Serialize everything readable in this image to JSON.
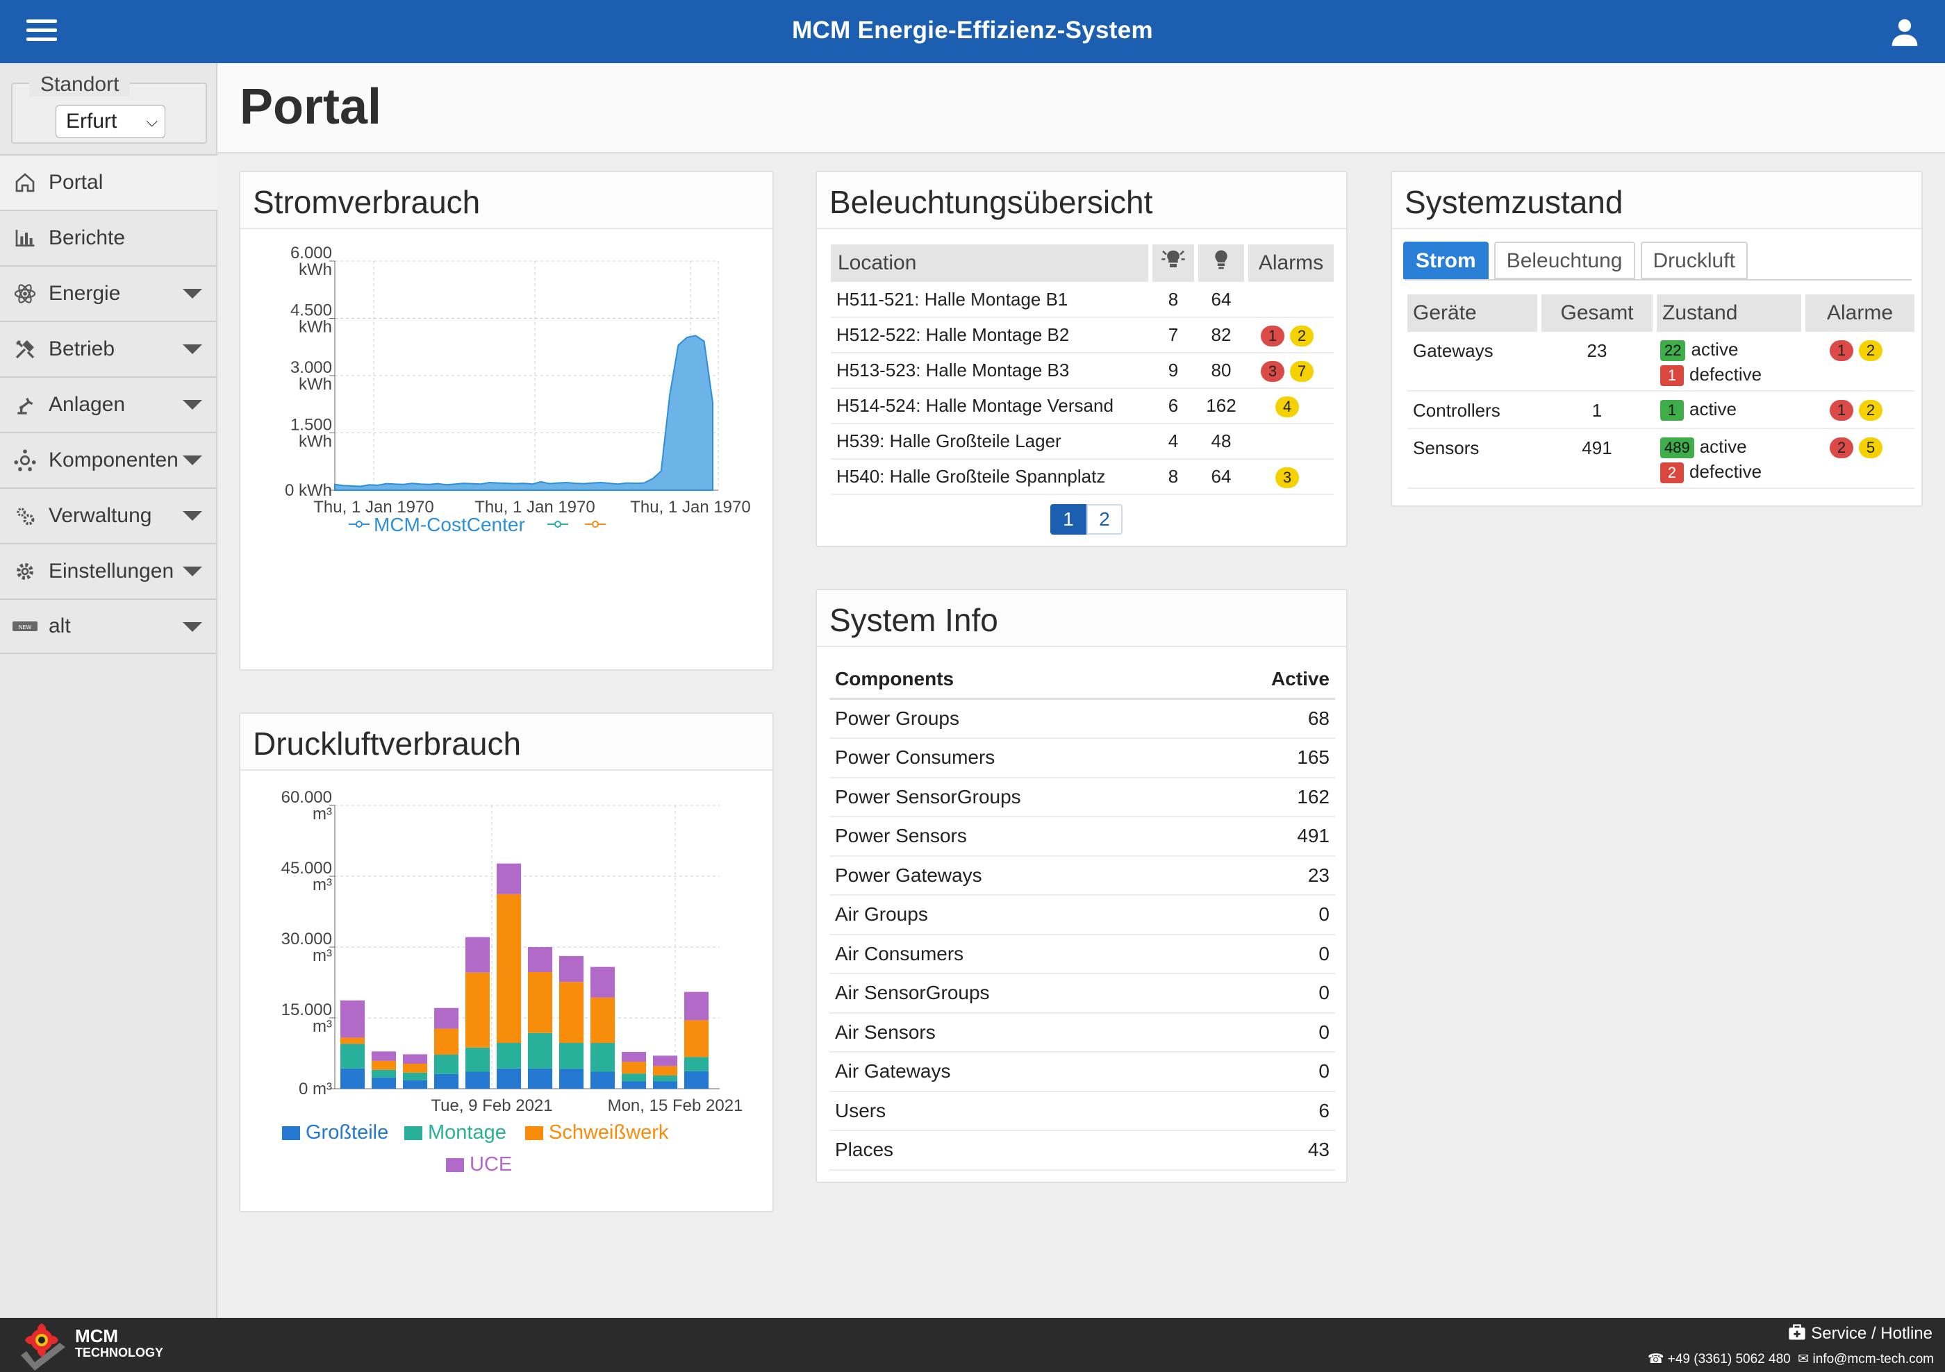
{
  "app": {
    "title": "MCM Energie-Effizienz-System"
  },
  "sidebar": {
    "standort_label": "Standort",
    "standort_value": "Erfurt",
    "items": [
      {
        "label": "Portal",
        "icon": "home-icon"
      },
      {
        "label": "Berichte",
        "icon": "bar-chart-icon"
      },
      {
        "label": "Energie",
        "icon": "atom-icon"
      },
      {
        "label": "Betrieb",
        "icon": "tools-icon"
      },
      {
        "label": "Anlagen",
        "icon": "robot-arm-icon"
      },
      {
        "label": "Komponenten",
        "icon": "components-icon"
      },
      {
        "label": "Verwaltung",
        "icon": "cogs-icon"
      },
      {
        "label": "Einstellungen",
        "icon": "gear-icon"
      },
      {
        "label": "alt",
        "icon": "new-badge-icon"
      }
    ]
  },
  "page": {
    "title": "Portal"
  },
  "strom": {
    "title": "Stromverbrauch",
    "chart_data": {
      "type": "area",
      "y_ticks": [
        "6.000 kWh",
        "4.500 kWh",
        "3.000 kWh",
        "1.500 kWh",
        "0 kWh"
      ],
      "x_ticks": [
        "Thu, 1 Jan 1970",
        "Thu, 1 Jan 1970",
        "Thu, 1 Jan 1970"
      ],
      "ylim": [
        0,
        6000
      ],
      "values": [
        150,
        120,
        110,
        100,
        140,
        130,
        170,
        160,
        150,
        180,
        160,
        150,
        170,
        140,
        160,
        180,
        170,
        160,
        200,
        190,
        180,
        170,
        180,
        160,
        220,
        170,
        190,
        200,
        180,
        170,
        190,
        200,
        180,
        160,
        190,
        180,
        190,
        300,
        500,
        2500,
        3800,
        4000,
        4050,
        3900,
        2300
      ],
      "legend": [
        "MCM-CostCenter",
        "",
        ""
      ],
      "colors": {
        "main": "#2d8fd9",
        "fill": "#6cb4e8",
        "teal": "#26b0a4",
        "orange": "#f58a1f"
      }
    }
  },
  "druck": {
    "title": "Druckluftverbrauch",
    "chart_data": {
      "type": "bar",
      "stacked": true,
      "y_ticks": [
        "60.000 m³",
        "45.000 m³",
        "30.000 m³",
        "15.000 m³",
        "0 m³"
      ],
      "x_ticks": [
        "Tue, 9 Feb 2021",
        "Mon, 15 Feb 2021"
      ],
      "ylim": [
        0,
        60000
      ],
      "series": [
        {
          "name": "Großteile",
          "color": "#2478d0",
          "values": [
            4300,
            2400,
            1800,
            3100,
            3600,
            4300,
            4300,
            4200,
            3600,
            1600,
            1600,
            3700
          ]
        },
        {
          "name": "Montage",
          "color": "#28b09a",
          "values": [
            5200,
            1600,
            1600,
            4100,
            5100,
            5400,
            7500,
            5500,
            6100,
            1600,
            1200,
            3000
          ]
        },
        {
          "name": "Schweißwerk",
          "color": "#f88d0c",
          "values": [
            1300,
            1900,
            1900,
            5500,
            15900,
            31500,
            12900,
            12900,
            9600,
            2500,
            2000,
            7800
          ]
        },
        {
          "name": "UCE",
          "color": "#b26ac9",
          "values": [
            7900,
            2000,
            2000,
            4400,
            7500,
            6500,
            5300,
            5500,
            6500,
            2100,
            2200,
            6000
          ]
        }
      ]
    }
  },
  "beleuchtung": {
    "title": "Beleuchtungsübersicht",
    "headers": {
      "location": "Location",
      "alarms": "Alarms"
    },
    "rows": [
      {
        "location": "H511-521: Halle Montage B1",
        "a": "8",
        "b": "64",
        "red": "",
        "yellow": ""
      },
      {
        "location": "H512-522: Halle Montage B2",
        "a": "7",
        "b": "82",
        "red": "1",
        "yellow": "2"
      },
      {
        "location": "H513-523: Halle Montage B3",
        "a": "9",
        "b": "80",
        "red": "3",
        "yellow": "7"
      },
      {
        "location": "H514-524: Halle Montage Versand",
        "a": "6",
        "b": "162",
        "red": "",
        "yellow": "4"
      },
      {
        "location": "H539: Halle Großteile Lager",
        "a": "4",
        "b": "48",
        "red": "",
        "yellow": ""
      },
      {
        "location": "H540: Halle Großteile Spannplatz",
        "a": "8",
        "b": "64",
        "red": "",
        "yellow": "3"
      }
    ],
    "pages": [
      "1",
      "2"
    ]
  },
  "system_info": {
    "title": "System Info",
    "headers": {
      "components": "Components",
      "active": "Active"
    },
    "rows": [
      {
        "name": "Power Groups",
        "value": "68"
      },
      {
        "name": "Power Consumers",
        "value": "165"
      },
      {
        "name": "Power SensorGroups",
        "value": "162"
      },
      {
        "name": "Power Sensors",
        "value": "491"
      },
      {
        "name": "Power Gateways",
        "value": "23"
      },
      {
        "name": "Air Groups",
        "value": "0"
      },
      {
        "name": "Air Consumers",
        "value": "0"
      },
      {
        "name": "Air SensorGroups",
        "value": "0"
      },
      {
        "name": "Air Sensors",
        "value": "0"
      },
      {
        "name": "Air Gateways",
        "value": "0"
      },
      {
        "name": "Users",
        "value": "6"
      },
      {
        "name": "Places",
        "value": "43"
      }
    ]
  },
  "systemzustand": {
    "title": "Systemzustand",
    "tabs": [
      "Strom",
      "Beleuchtung",
      "Druckluft"
    ],
    "headers": {
      "geraete": "Geräte",
      "gesamt": "Gesamt",
      "zustand": "Zustand",
      "alarme": "Alarme"
    },
    "rows": [
      {
        "name": "Gateways",
        "total": "23",
        "active": "22",
        "active_label": "active",
        "defective": "1",
        "defective_label": "defective",
        "red": "1",
        "yellow": "2"
      },
      {
        "name": "Controllers",
        "total": "1",
        "active": "1",
        "active_label": "active",
        "defective": "",
        "defective_label": "",
        "red": "1",
        "yellow": "2"
      },
      {
        "name": "Sensors",
        "total": "491",
        "active": "489",
        "active_label": "active",
        "defective": "2",
        "defective_label": "defective",
        "red": "2",
        "yellow": "5"
      }
    ]
  },
  "footer": {
    "brand": "MCM",
    "brand_sub": "TECHNOLOGY",
    "service": "Service / Hotline",
    "phone": "+49 (3361) 5062 480",
    "email": "info@mcm-tech.com"
  }
}
